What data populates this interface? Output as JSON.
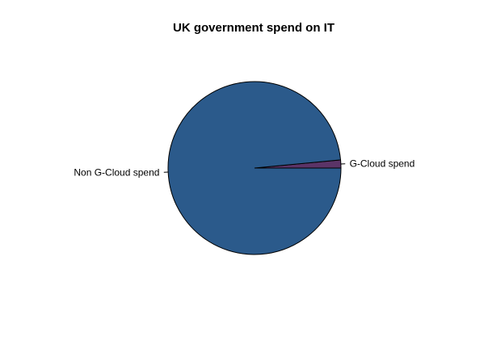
{
  "chart_data": {
    "type": "pie",
    "title": "UK government spend on IT",
    "slices": [
      {
        "label": "G-Cloud spend",
        "value": 1.5,
        "color": "#5B3467"
      },
      {
        "label": "Non G-Cloud spend",
        "value": 98.5,
        "color": "#2B5A8B"
      }
    ],
    "start_angle_deg": 0,
    "direction": "counterclockwise",
    "border_color": "#000000"
  }
}
